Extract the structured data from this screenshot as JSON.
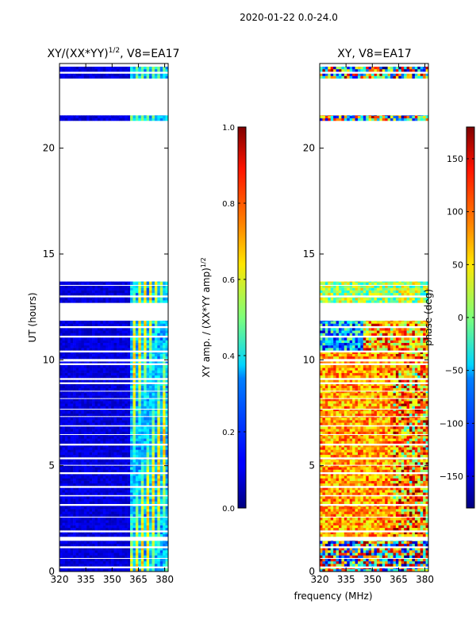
{
  "suptitle": "2020-01-22 0.0-24.0",
  "xlabel": "frequency (MHz)",
  "chart_data": [
    {
      "type": "heatmap",
      "title_prefix": "XY/(XX*YY)",
      "title_sup": "1/2",
      "title_suffix": ", V8=EA17",
      "ylabel": "UT (hours)",
      "x_ticks": [
        320,
        335,
        350,
        365,
        380
      ],
      "x_range": [
        320,
        382
      ],
      "y_ticks": [
        0,
        5,
        10,
        15,
        20
      ],
      "y_range": [
        0,
        24
      ],
      "colorbar": {
        "label_prefix": "XY amp. / (XX*YY amp)",
        "label_sup": "1/2",
        "ticks": [
          "0.0",
          "0.2",
          "0.4",
          "0.6",
          "0.8",
          "1.0"
        ],
        "range": [
          0,
          1
        ],
        "colormap": "jet"
      }
    },
    {
      "type": "heatmap",
      "title": "XY, V8=EA17",
      "ylabel": "phase (deg)",
      "x_ticks": [
        320,
        335,
        350,
        365,
        380
      ],
      "x_range": [
        320,
        382
      ],
      "y_ticks": [
        0,
        5,
        10,
        15,
        20
      ],
      "y_range": [
        0,
        24
      ],
      "colorbar": {
        "ticks": [
          "−150",
          "−100",
          "−50",
          "0",
          "50",
          "100",
          "150"
        ],
        "range": [
          -180,
          180
        ],
        "colormap": "jet"
      }
    }
  ]
}
